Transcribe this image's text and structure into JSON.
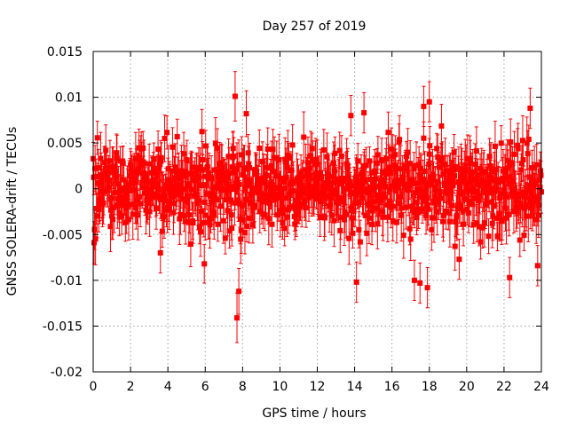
{
  "chart_data": {
    "type": "scatter",
    "title": "Day 257 of 2019",
    "xlabel": "GPS time / hours",
    "ylabel": "GNSS SOLERA-drift / TECUs",
    "xlim": [
      0,
      24
    ],
    "ylim": [
      -0.02,
      0.015
    ],
    "x_ticks": [
      0,
      2,
      4,
      6,
      8,
      10,
      12,
      14,
      16,
      18,
      20,
      22,
      24
    ],
    "x_tick_labels": [
      "0",
      "2",
      "4",
      "6",
      "8",
      "10",
      "12",
      "14",
      "16",
      "18",
      "20",
      "22",
      "24"
    ],
    "y_ticks": [
      -0.02,
      -0.015,
      -0.01,
      -0.005,
      0,
      0.005,
      0.01,
      0.015
    ],
    "y_tick_labels": [
      "-0.02",
      "-0.015",
      "-0.01",
      "-0.005",
      "0",
      "0.005",
      "0.01",
      "0.015"
    ],
    "grid": true,
    "series_color": "#ff0000",
    "series": [
      {
        "name": "SOLERA-drift",
        "marker": "square",
        "error_bars": true,
        "typical_error": 0.0022,
        "bulk_mean": 0.0,
        "bulk_spread": 0.0028,
        "bulk_time_step": 0.025,
        "outliers": [
          {
            "x": 7.6,
            "y": 0.0101,
            "err": 0.0027
          },
          {
            "x": 7.7,
            "y": -0.0141,
            "err": 0.0027
          },
          {
            "x": 7.8,
            "y": -0.0112,
            "err": 0.0025
          },
          {
            "x": 8.2,
            "y": 0.0082,
            "err": 0.0025
          },
          {
            "x": 13.8,
            "y": 0.008,
            "err": 0.0022
          },
          {
            "x": 14.1,
            "y": -0.0102,
            "err": 0.0022
          },
          {
            "x": 14.5,
            "y": 0.0083,
            "err": 0.0022
          },
          {
            "x": 17.2,
            "y": -0.01,
            "err": 0.0022
          },
          {
            "x": 17.5,
            "y": -0.0103,
            "err": 0.0022
          },
          {
            "x": 17.9,
            "y": -0.0108,
            "err": 0.0022
          },
          {
            "x": 18.0,
            "y": 0.0095,
            "err": 0.0022
          },
          {
            "x": 17.7,
            "y": 0.009,
            "err": 0.0022
          },
          {
            "x": 22.3,
            "y": -0.0097,
            "err": 0.0022
          },
          {
            "x": 23.4,
            "y": 0.0088,
            "err": 0.0022
          },
          {
            "x": 23.8,
            "y": -0.0084,
            "err": 0.0022
          },
          {
            "x": 3.6,
            "y": -0.007,
            "err": 0.0022
          },
          {
            "x": 19.6,
            "y": -0.0077,
            "err": 0.0022
          }
        ]
      }
    ]
  }
}
